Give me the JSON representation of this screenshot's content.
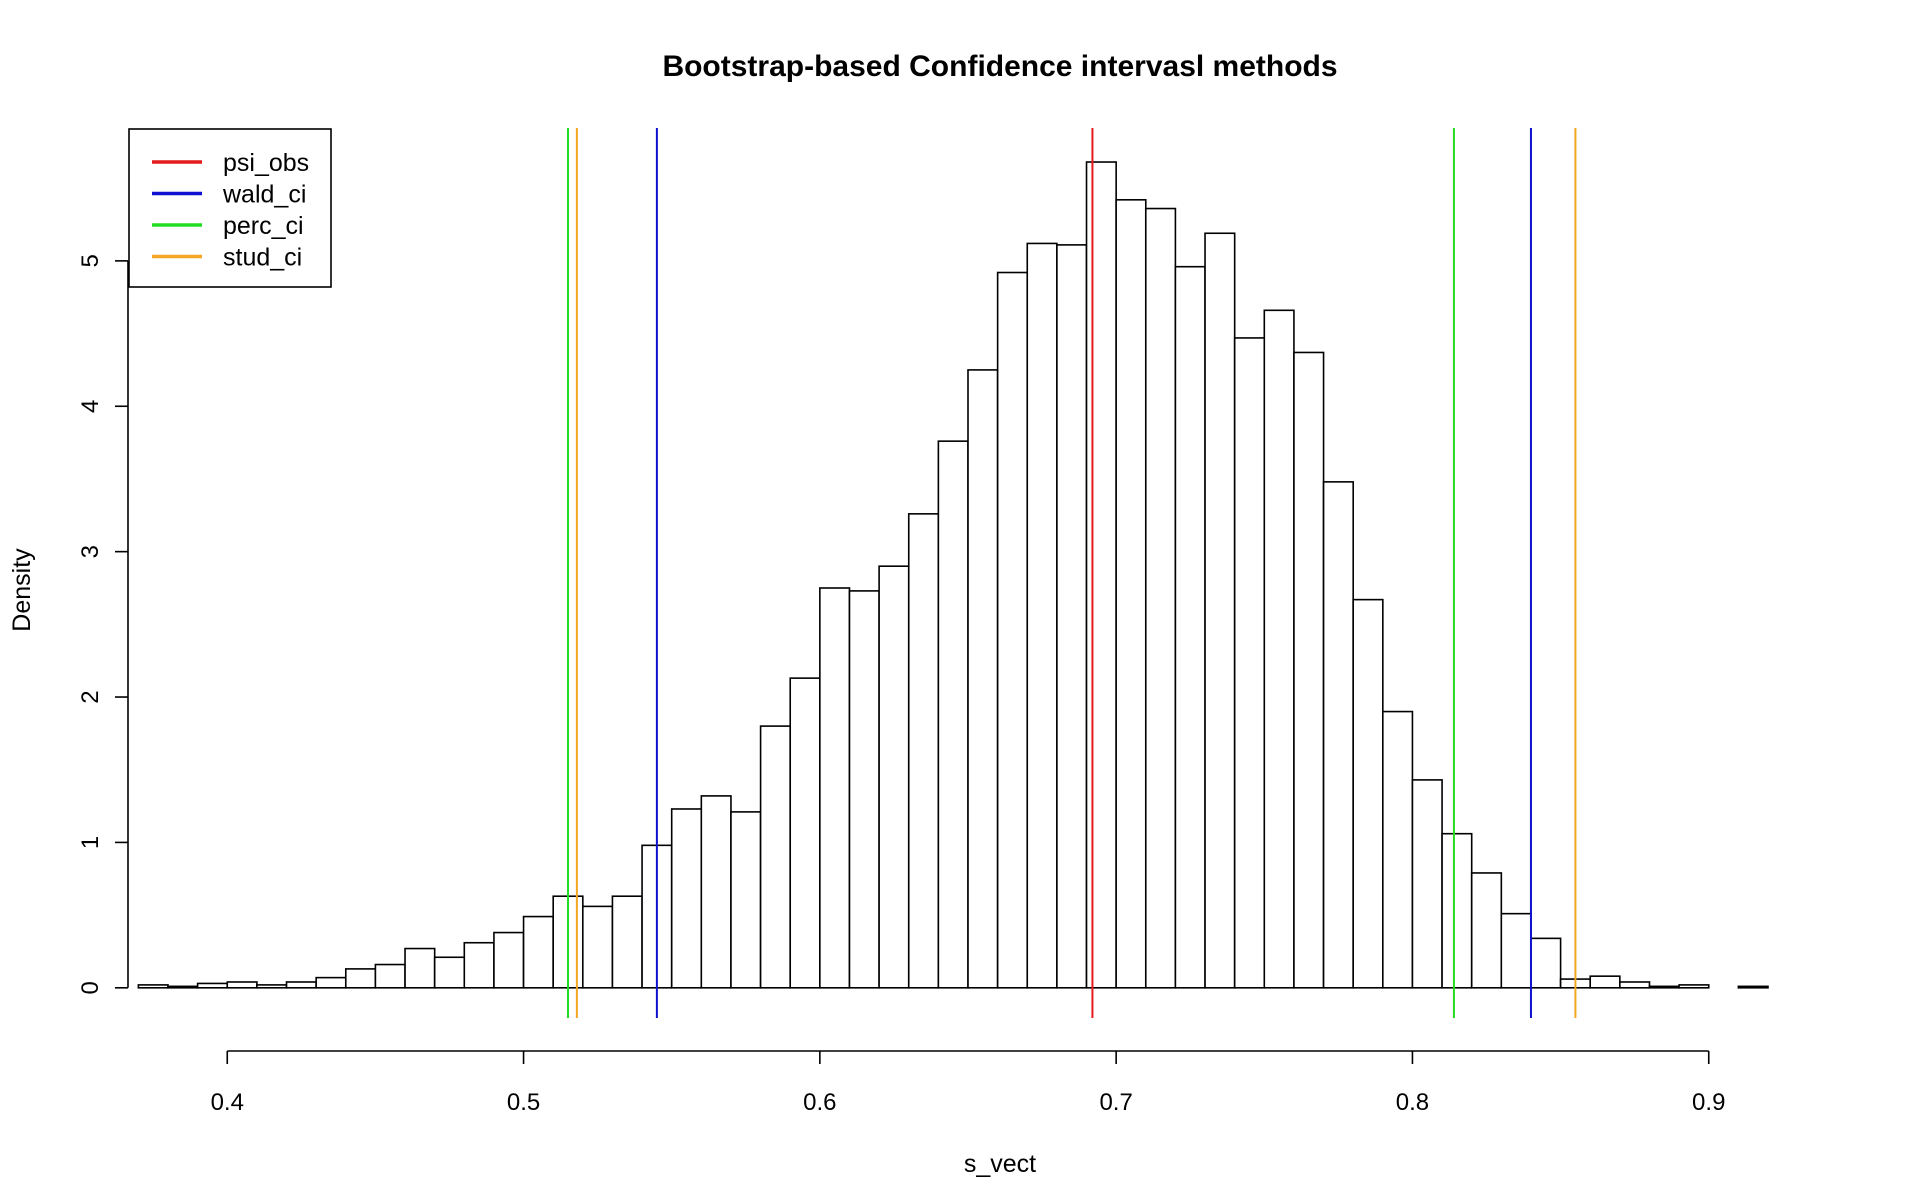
{
  "chart_data": {
    "type": "histogram",
    "title": "Bootstrap-based Confidence intervasl methods",
    "xlabel": "s_vect",
    "ylabel": "Density",
    "xlim": [
      0.37,
      0.92
    ],
    "ylim": [
      0,
      5.7
    ],
    "bin_width": 0.01,
    "bin_start": 0.37,
    "density": [
      0.02,
      0.01,
      0.03,
      0.04,
      0.02,
      0.04,
      0.07,
      0.13,
      0.16,
      0.27,
      0.21,
      0.31,
      0.38,
      0.49,
      0.63,
      0.56,
      0.63,
      0.98,
      1.23,
      1.32,
      1.21,
      1.8,
      2.13,
      2.75,
      2.73,
      2.9,
      3.26,
      3.76,
      4.25,
      4.92,
      5.12,
      5.11,
      5.68,
      5.42,
      5.36,
      4.96,
      5.19,
      4.47,
      4.66,
      4.37,
      3.48,
      2.67,
      1.9,
      1.43,
      1.06,
      0.79,
      0.51,
      0.34,
      0.06,
      0.08,
      0.04,
      0.01,
      0.02,
      0.0,
      0.01
    ],
    "x_ticks": [
      "0.4",
      "0.5",
      "0.6",
      "0.7",
      "0.8",
      "0.9"
    ],
    "x_tick_values": [
      0.4,
      0.5,
      0.6,
      0.7,
      0.8,
      0.9
    ],
    "y_ticks": [
      "0",
      "1",
      "2",
      "3",
      "4",
      "5"
    ],
    "y_tick_values": [
      0,
      1,
      2,
      3,
      4,
      5
    ],
    "legend_position": "top-left",
    "vlines": [
      {
        "name": "psi_obs",
        "x": 0.692,
        "color": "#e41a1c"
      },
      {
        "name": "wald_ci",
        "x": 0.545,
        "color": "#1010d0"
      },
      {
        "name": "wald_ci",
        "x": 0.84,
        "color": "#1010d0"
      },
      {
        "name": "perc_ci",
        "x": 0.515,
        "color": "#22dd22"
      },
      {
        "name": "perc_ci",
        "x": 0.814,
        "color": "#22dd22"
      },
      {
        "name": "stud_ci",
        "x": 0.518,
        "color": "#f5a623"
      },
      {
        "name": "stud_ci",
        "x": 0.855,
        "color": "#f5a623"
      }
    ],
    "legend": [
      {
        "label": "psi_obs",
        "color": "#e41a1c"
      },
      {
        "label": "wald_ci",
        "color": "#1010d0"
      },
      {
        "label": "perc_ci",
        "color": "#22dd22"
      },
      {
        "label": "stud_ci",
        "color": "#f5a623"
      }
    ]
  }
}
